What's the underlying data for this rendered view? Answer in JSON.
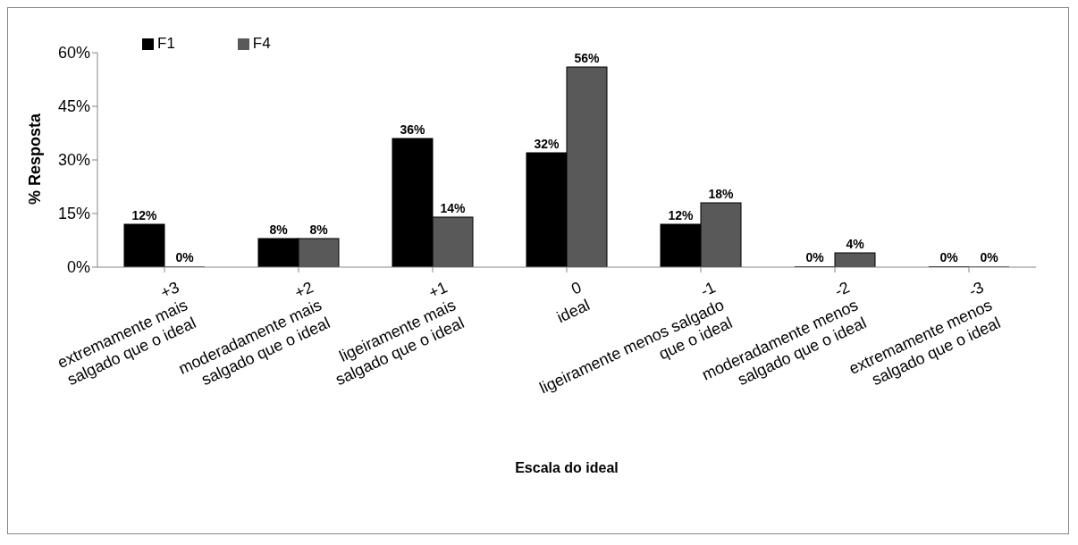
{
  "chart_data": {
    "type": "bar",
    "xlabel": "Escala do ideal",
    "ylabel": "% Resposta",
    "categories": [
      "+3\nextremamente mais\nsalgado que o ideal",
      "+2\nmoderadamente mais\nsalgado que o ideal",
      "+1\nligeiramente mais\nsalgado que o ideal",
      "0\nideal",
      "-1\nligeiramente menos salgado\nque o ideal",
      "-2\nmoderadamente menos\nsalgado que o ideal",
      "-3\nextremamente menos\nsalgado que o ideal"
    ],
    "series": [
      {
        "name": "F1",
        "color": "#000000",
        "values": [
          12,
          8,
          36,
          32,
          12,
          0,
          0
        ],
        "value_labels": [
          "12%",
          "8%",
          "36%",
          "32%",
          "12%",
          "0%",
          "0%"
        ]
      },
      {
        "name": "F4",
        "color": "#595959",
        "values": [
          0,
          8,
          14,
          56,
          18,
          4,
          0
        ],
        "value_labels": [
          "0%",
          "8%",
          "14%",
          "56%",
          "18%",
          "4%",
          "0%"
        ]
      }
    ],
    "ylim": [
      0,
      60
    ],
    "yticks": [
      {
        "value": 0,
        "label": "0%"
      },
      {
        "value": 15,
        "label": "15%"
      },
      {
        "value": 30,
        "label": "30%"
      },
      {
        "value": 45,
        "label": "45%"
      },
      {
        "value": 60,
        "label": "60%"
      }
    ],
    "grid": false,
    "legend": "top left"
  }
}
